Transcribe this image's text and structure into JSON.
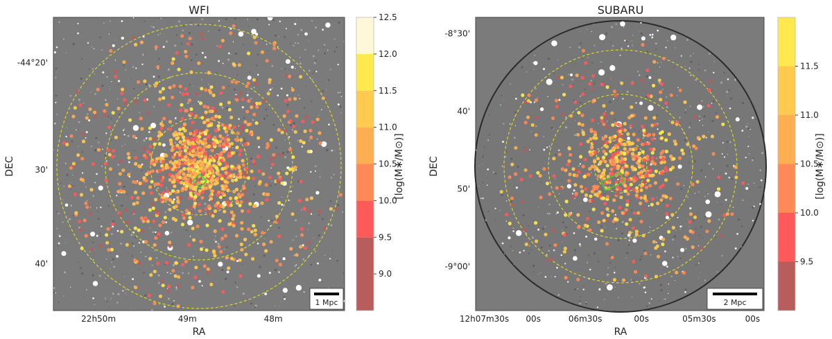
{
  "colors": {
    "field_bg": "#7b7b7b",
    "ring": "#e3e21c",
    "bcg_box": "#35d23a",
    "cbar_bins": [
      "#b85c5c",
      "#ff5a5a",
      "#ff8a55",
      "#ffae52",
      "#ffcb4f",
      "#ffe94e",
      "#fff8d8"
    ]
  },
  "chart_data": [
    {
      "type": "scatter",
      "panel": "left",
      "title": "WFI",
      "xlabel": "RA",
      "ylabel": "DEC",
      "x_ticks": [
        "22h50m",
        "49m",
        "48m"
      ],
      "x_tick_frac": [
        0.155,
        0.46,
        0.755
      ],
      "y_ticks": [
        "-44°20'",
        "30'",
        "40'"
      ],
      "y_tick_frac": [
        0.155,
        0.52,
        0.84
      ],
      "circles_mpc": [
        1,
        2,
        3
      ],
      "scale_bar_label": "1 Mpc",
      "n_members": 1100,
      "colorbar": {
        "label": "[log(M∗/M⊙)]",
        "boundaries": [
          8.5,
          9.5,
          10.0,
          10.5,
          11.0,
          11.5,
          12.0,
          12.5
        ],
        "tick_values": [
          9.0,
          9.5,
          10.0,
          10.5,
          11.0,
          11.5,
          12.0,
          12.5
        ],
        "tick_labels": [
          "9.0",
          "9.5",
          "10.0",
          "10.5",
          "11.0",
          "11.5",
          "12.0",
          "12.5"
        ]
      }
    },
    {
      "type": "scatter",
      "panel": "right",
      "title": "SUBARU",
      "xlabel": "RA",
      "ylabel": "DEC",
      "x_ticks": [
        "12h07m30s",
        "00s",
        "06m30s",
        "00s",
        "05m30s",
        "00s"
      ],
      "x_tick_frac": [
        0.03,
        0.2,
        0.38,
        0.575,
        0.775,
        0.96
      ],
      "y_ticks": [
        "-8°30'",
        "40'",
        "50'",
        "-9°00'"
      ],
      "y_tick_frac": [
        0.055,
        0.32,
        0.585,
        0.85
      ],
      "circles_mpc": [
        1,
        2,
        3
      ],
      "scale_bar_label": "2 Mpc",
      "n_members": 600,
      "colorbar": {
        "label": "[log(M∗/M⊙)]",
        "boundaries": [
          9.0,
          9.5,
          10.0,
          10.5,
          11.0,
          11.5,
          12.0
        ],
        "tick_values": [
          9.5,
          10.0,
          10.5,
          11.0,
          11.5
        ],
        "tick_labels": [
          "9.5",
          "10.0",
          "10.5",
          "11.0",
          "11.5"
        ]
      }
    }
  ]
}
